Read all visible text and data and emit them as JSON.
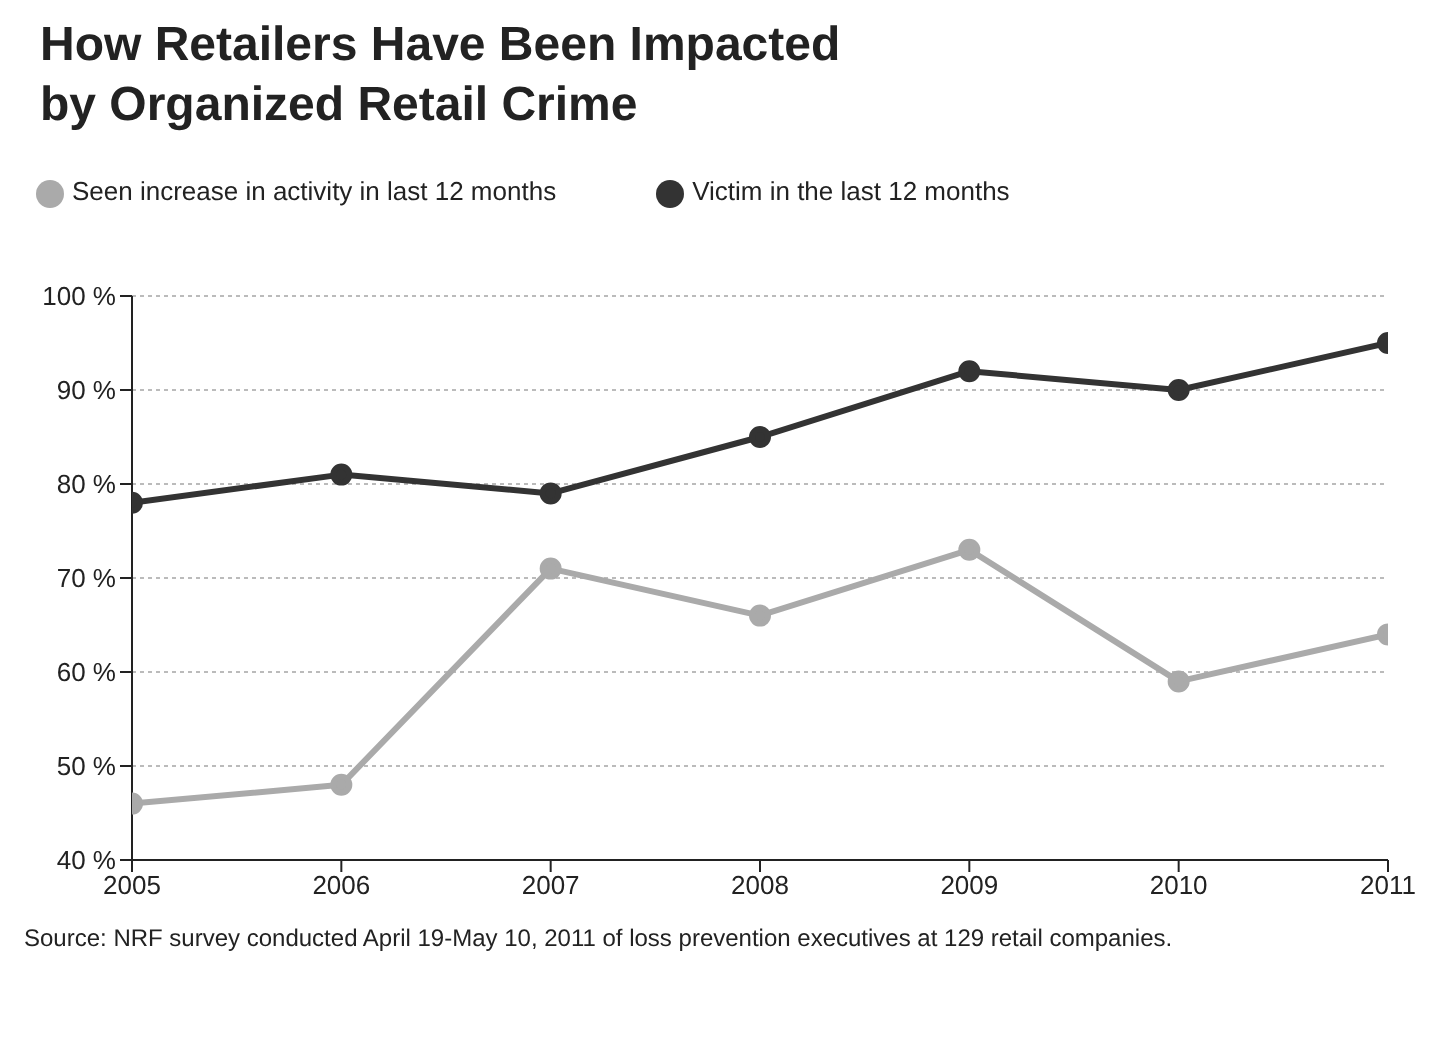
{
  "chart_data": {
    "type": "line",
    "title": "How Retailers Have Been Impacted by Organized Retail Crime",
    "x": [
      2005,
      2006,
      2007,
      2008,
      2009,
      2010,
      2011
    ],
    "series": [
      {
        "name": "Victim in the last 12 months",
        "color": "#333333",
        "values": [
          78,
          81,
          79,
          85,
          92,
          90,
          95
        ]
      },
      {
        "name": "Seen increase in activity in last 12 months",
        "color": "#aaaaaa",
        "values": [
          46,
          48,
          71,
          66,
          73,
          59,
          64
        ]
      }
    ],
    "xlim": [
      2005,
      2011
    ],
    "xticks": [
      2005,
      2006,
      2007,
      2008,
      2009,
      2010,
      2011
    ],
    "ylim": [
      40,
      100
    ],
    "yticks": [
      {
        "value": 40,
        "label": "40 %"
      },
      {
        "value": 50,
        "label": "50 %"
      },
      {
        "value": 60,
        "label": "60 %"
      },
      {
        "value": 70,
        "label": "70 %"
      },
      {
        "value": 80,
        "label": "80 %"
      },
      {
        "value": 90,
        "label": "90 %"
      },
      {
        "value": 100,
        "label": "100 %"
      }
    ],
    "grid": "y",
    "legend": "top left",
    "marker": "circle",
    "line_style": "solid",
    "annotations": [
      "Source: NRF survey conducted April 19-May 10, 2011 of loss prevention executives at 129 retail companies."
    ]
  }
}
